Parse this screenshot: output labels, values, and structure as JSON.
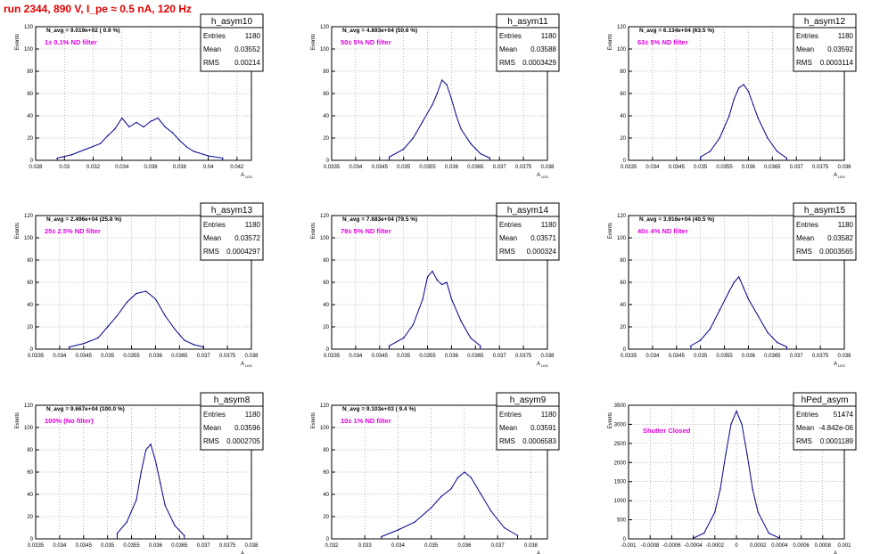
{
  "header": {
    "run_title": "run 2344,   890 V, I_pe ≈ 0.5 nA, 120 Hz"
  },
  "colors": {
    "title": "#e00000",
    "filter_label": "#e000e0",
    "histogram": "#00008b",
    "grid": "#777777"
  },
  "axis_titles": {
    "x": "A",
    "x_sub": "LED",
    "y": "Events"
  },
  "stats_labels": {
    "entries": "Entries",
    "mean": "Mean",
    "rms": "RMS"
  },
  "chart_data": [
    {
      "type": "histogram",
      "name": "h_asym10",
      "navg": "N_avg = 9.019e+02 ( 0.9 %)",
      "filter": "1± 0.1% ND filter",
      "entries": "1180",
      "mean": "0.03552",
      "rms": "0.00214",
      "xlim": [
        0.028,
        0.043
      ],
      "ylim": [
        0,
        120
      ],
      "xticks": [
        "0.028",
        "0.03",
        "0.032",
        "0.034",
        "0.036",
        "0.038",
        "0.04",
        "0.042"
      ],
      "yticks": [
        "0",
        "20",
        "40",
        "60",
        "80",
        "100",
        "120"
      ],
      "x": [
        0.0295,
        0.0305,
        0.0315,
        0.0325,
        0.033,
        0.0335,
        0.034,
        0.0345,
        0.035,
        0.0355,
        0.036,
        0.0365,
        0.037,
        0.0375,
        0.038,
        0.0385,
        0.039,
        0.04,
        0.041
      ],
      "counts": [
        2,
        5,
        10,
        15,
        22,
        28,
        38,
        30,
        34,
        30,
        35,
        38,
        30,
        25,
        18,
        12,
        8,
        4,
        2
      ]
    },
    {
      "type": "histogram",
      "name": "h_asym11",
      "navg": "N_avg = 4.893e+04 (50.6 %)",
      "filter": "50± 5% ND filter",
      "entries": "1180",
      "mean": "0.03588",
      "rms": "0.0003429",
      "xlim": [
        0.0335,
        0.038
      ],
      "ylim": [
        0,
        120
      ],
      "xticks": [
        "0.0335",
        "0.034",
        "0.0345",
        "0.035",
        "0.0355",
        "0.036",
        "0.0365",
        "0.037",
        "0.0375",
        "0.038"
      ],
      "yticks": [
        "0",
        "20",
        "40",
        "60",
        "80",
        "100",
        "120"
      ],
      "x": [
        0.0347,
        0.035,
        0.0352,
        0.0354,
        0.0356,
        0.0357,
        0.0358,
        0.0359,
        0.036,
        0.0361,
        0.0362,
        0.0364,
        0.0366,
        0.0368
      ],
      "counts": [
        3,
        10,
        20,
        35,
        50,
        60,
        72,
        68,
        55,
        40,
        28,
        15,
        6,
        2
      ]
    },
    {
      "type": "histogram",
      "name": "h_asym12",
      "navg": "N_avg = 6.134e+04 (63.5 %)",
      "filter": "63± 5% ND filter",
      "entries": "1180",
      "mean": "0.03592",
      "rms": "0.0003114",
      "xlim": [
        0.0335,
        0.038
      ],
      "ylim": [
        0,
        120
      ],
      "xticks": [
        "0.0335",
        "0.034",
        "0.0345",
        "0.035",
        "0.0355",
        "0.036",
        "0.0365",
        "0.037",
        "0.0375",
        "0.038"
      ],
      "yticks": [
        "0",
        "20",
        "40",
        "60",
        "80",
        "100",
        "120"
      ],
      "x": [
        0.035,
        0.0352,
        0.0354,
        0.0356,
        0.0357,
        0.0358,
        0.0359,
        0.036,
        0.0361,
        0.0362,
        0.0364,
        0.0366,
        0.0368
      ],
      "counts": [
        3,
        8,
        20,
        40,
        55,
        65,
        68,
        62,
        50,
        38,
        20,
        8,
        2
      ]
    },
    {
      "type": "histogram",
      "name": "h_asym13",
      "navg": "N_avg = 2.496e+04 (25.8 %)",
      "filter": "25± 2.5% ND filter",
      "entries": "1180",
      "mean": "0.03572",
      "rms": "0.0004297",
      "xlim": [
        0.0335,
        0.038
      ],
      "ylim": [
        0,
        120
      ],
      "xticks": [
        "0.0335",
        "0.034",
        "0.0345",
        "0.035",
        "0.0355",
        "0.036",
        "0.0365",
        "0.037",
        "0.0375",
        "0.038"
      ],
      "yticks": [
        "0",
        "20",
        "40",
        "60",
        "80",
        "100",
        "120"
      ],
      "x": [
        0.0342,
        0.0345,
        0.0348,
        0.035,
        0.0352,
        0.0354,
        0.0356,
        0.0358,
        0.036,
        0.0362,
        0.0364,
        0.0366,
        0.0368,
        0.037
      ],
      "counts": [
        2,
        5,
        10,
        20,
        30,
        42,
        50,
        52,
        45,
        30,
        18,
        8,
        4,
        2
      ]
    },
    {
      "type": "histogram",
      "name": "h_asym14",
      "navg": "N_avg = 7.683e+04 (79.5 %)",
      "filter": "79± 5% ND filter",
      "entries": "1180",
      "mean": "0.03571",
      "rms": "0.000324",
      "xlim": [
        0.0335,
        0.038
      ],
      "ylim": [
        0,
        120
      ],
      "xticks": [
        "0.0335",
        "0.034",
        "0.0345",
        "0.035",
        "0.0355",
        "0.036",
        "0.0365",
        "0.037",
        "0.0375",
        "0.038"
      ],
      "yticks": [
        "0",
        "20",
        "40",
        "60",
        "80",
        "100",
        "120"
      ],
      "x": [
        0.0347,
        0.035,
        0.0352,
        0.0354,
        0.0355,
        0.0356,
        0.0357,
        0.0358,
        0.0359,
        0.036,
        0.0362,
        0.0364,
        0.0366
      ],
      "counts": [
        3,
        10,
        22,
        45,
        65,
        70,
        62,
        58,
        60,
        45,
        25,
        10,
        3
      ]
    },
    {
      "type": "histogram",
      "name": "h_asym15",
      "navg": "N_avg = 3.916e+04 (40.5 %)",
      "filter": "40± 4% ND filter",
      "entries": "1180",
      "mean": "0.03582",
      "rms": "0.0003565",
      "xlim": [
        0.0335,
        0.038
      ],
      "ylim": [
        0,
        120
      ],
      "xticks": [
        "0.0335",
        "0.034",
        "0.0345",
        "0.035",
        "0.0355",
        "0.036",
        "0.0365",
        "0.037",
        "0.0375",
        "0.038"
      ],
      "yticks": [
        "0",
        "20",
        "40",
        "60",
        "80",
        "100",
        "120"
      ],
      "x": [
        0.0348,
        0.035,
        0.0352,
        0.0354,
        0.0356,
        0.0357,
        0.0358,
        0.0359,
        0.036,
        0.0362,
        0.0364,
        0.0366,
        0.0368
      ],
      "counts": [
        3,
        8,
        18,
        35,
        52,
        60,
        65,
        55,
        45,
        30,
        15,
        6,
        2
      ]
    },
    {
      "type": "histogram",
      "name": "h_asym8",
      "navg": "N_avg = 9.667e+04 (100.0 %)",
      "filter": "100% (No filter)",
      "entries": "1180",
      "mean": "0.03596",
      "rms": "0.0002705",
      "xlim": [
        0.0335,
        0.038
      ],
      "ylim": [
        0,
        120
      ],
      "xticks": [
        "0.0335",
        "0.034",
        "0.0345",
        "0.035",
        "0.0355",
        "0.036",
        "0.0365",
        "0.037",
        "0.0375",
        "0.038"
      ],
      "yticks": [
        "0",
        "20",
        "40",
        "60",
        "80",
        "100",
        "120"
      ],
      "x": [
        0.0352,
        0.0354,
        0.0356,
        0.0357,
        0.0358,
        0.0359,
        0.036,
        0.0361,
        0.0362,
        0.0364,
        0.0366
      ],
      "counts": [
        5,
        15,
        35,
        60,
        80,
        85,
        70,
        50,
        30,
        12,
        3
      ]
    },
    {
      "type": "histogram",
      "name": "h_asym9",
      "navg": "N_avg = 9.103e+03 ( 9.4 %)",
      "filter": "10± 1% ND filter",
      "entries": "1180",
      "mean": "0.03591",
      "rms": "0.0006583",
      "xlim": [
        0.032,
        0.0385
      ],
      "ylim": [
        0,
        120
      ],
      "xticks": [
        "0.032",
        "0.033",
        "0.034",
        "0.035",
        "0.036",
        "0.037",
        "0.038"
      ],
      "yticks": [
        "0",
        "20",
        "40",
        "60",
        "80",
        "100",
        "120"
      ],
      "x": [
        0.0335,
        0.034,
        0.0345,
        0.035,
        0.0353,
        0.0356,
        0.0358,
        0.036,
        0.0362,
        0.0365,
        0.0368,
        0.0372,
        0.0376
      ],
      "counts": [
        2,
        8,
        15,
        28,
        38,
        45,
        55,
        60,
        55,
        40,
        25,
        10,
        3
      ]
    },
    {
      "type": "histogram",
      "name": "hPed_asym",
      "navg": "",
      "filter": "Shutter Closed",
      "entries": "51474",
      "mean": "-4.842e-06",
      "rms": "0.0001189",
      "xlim": [
        -0.001,
        0.001
      ],
      "ylim": [
        0,
        3500
      ],
      "xticks": [
        "-0.001",
        "-0.0008",
        "-0.0006",
        "-0.0004",
        "-0.0002",
        "0",
        "0.0002",
        "0.0004",
        "0.0006",
        "0.0008",
        "0.001"
      ],
      "yticks": [
        "0",
        "500",
        "1000",
        "1500",
        "2000",
        "2500",
        "3000",
        "3500"
      ],
      "x": [
        -0.0004,
        -0.0003,
        -0.0002,
        -0.00015,
        -0.0001,
        -5e-05,
        0,
        5e-05,
        0.0001,
        0.00015,
        0.0002,
        0.0003,
        0.0004
      ],
      "counts": [
        20,
        150,
        700,
        1300,
        2200,
        3000,
        3350,
        3000,
        2200,
        1300,
        700,
        150,
        20
      ]
    }
  ]
}
